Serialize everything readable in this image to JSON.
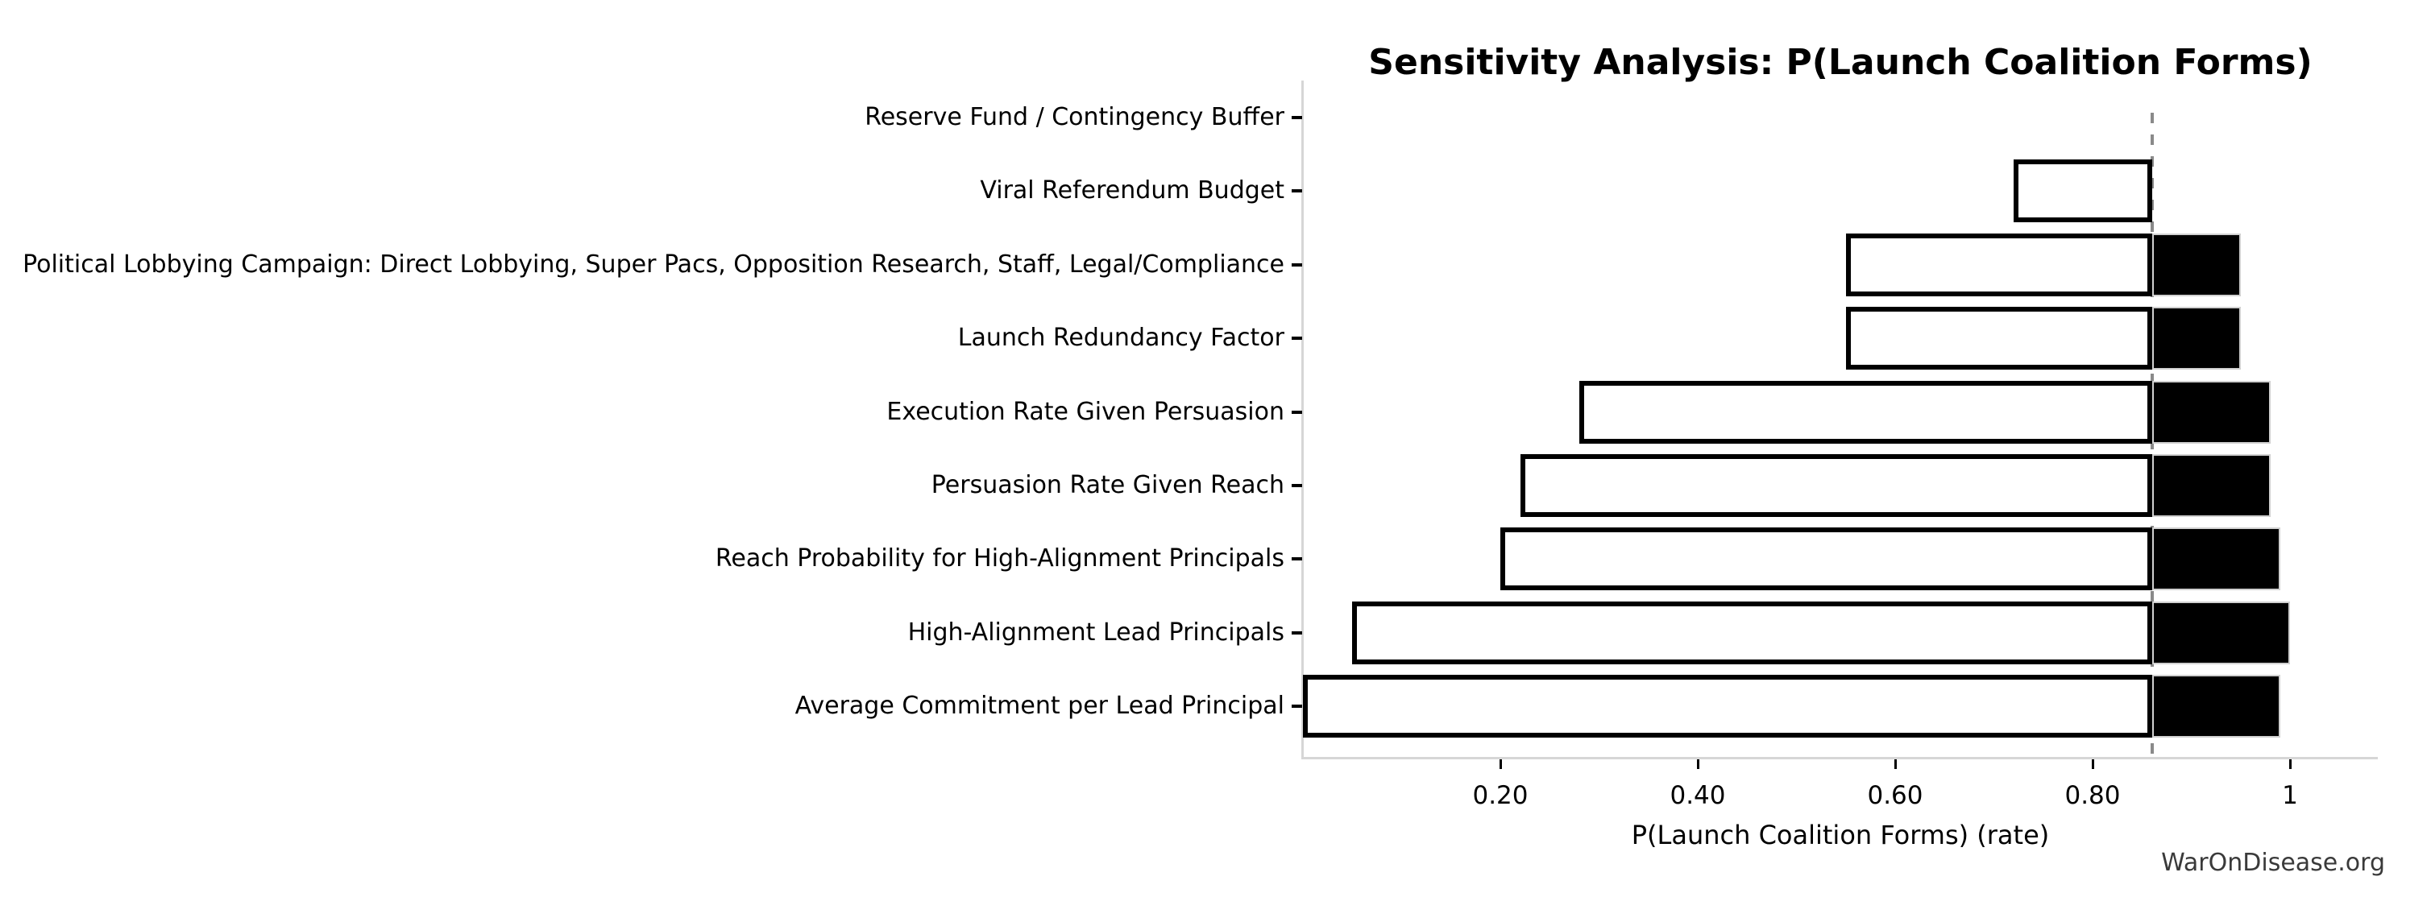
{
  "page": {
    "background": "#ffffff"
  },
  "chart_data": {
    "type": "bar",
    "variant": "tornado-sensitivity",
    "orientation": "horizontal",
    "title": "Sensitivity Analysis: P(Launch Coalition Forms)",
    "xlabel": "P(Launch Coalition Forms) (rate)",
    "watermark": "WarOnDisease.org",
    "baseline": 0.86,
    "xlim": [
      0,
      1.09
    ],
    "xticks": [
      0.2,
      0.4,
      0.6,
      0.8,
      1
    ],
    "xtick_labels": [
      "0.20",
      "0.40",
      "0.60",
      "0.80",
      "1"
    ],
    "grid": false,
    "legend": "none",
    "categories": [
      "Reserve Fund / Contingency Buffer",
      "Viral Referendum Budget",
      "Political Lobbying Campaign: Direct Lobbying, Super Pacs, Opposition Research, Staff, Legal/Compliance",
      "Launch Redundancy Factor",
      "Execution Rate Given Persuasion",
      "Persuasion Rate Given Reach",
      "Reach Probability for High-Alignment Principals",
      "High-Alignment Lead Principals",
      "Average Commitment per Lead Principal"
    ],
    "series": [
      {
        "name": "low_value",
        "style": "white_fill_black_border",
        "values": [
          0.86,
          0.72,
          0.55,
          0.55,
          0.28,
          0.22,
          0.2,
          0.05,
          0.0
        ]
      },
      {
        "name": "high_value",
        "style": "black_fill",
        "values": [
          0.86,
          0.86,
          0.95,
          0.95,
          0.98,
          0.98,
          0.99,
          1.0,
          0.99
        ]
      }
    ],
    "colors": {
      "bar_low_fill": "#ffffff",
      "bar_low_border": "#000000",
      "bar_high_fill": "#000000",
      "bar_high_border": "#d0d0d0",
      "baseline_line": "#8a8a8a",
      "spine": "#d6d6d6",
      "tick": "#000000",
      "text": "#000000",
      "watermark_text": "#3a3a3a"
    }
  }
}
